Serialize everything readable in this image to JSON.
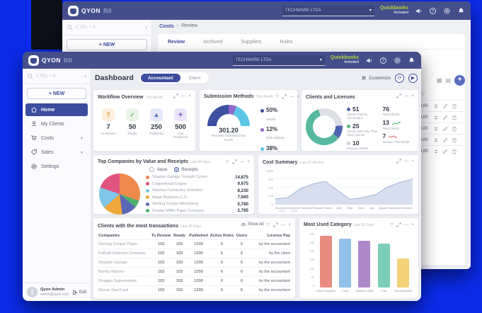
{
  "page": {
    "background": "#0b2be9"
  },
  "back_window": {
    "brand": {
      "name": "QYON",
      "suffix": "Bill"
    },
    "header": {
      "company_select": "TECHWARE LTDA",
      "quickbooks": "Quickbooks",
      "quickbooks_status": "Activated"
    },
    "sidebar": {
      "search": "CTRL + K",
      "new_button": "+ NEW",
      "home": "Home"
    },
    "breadcrumb": {
      "section": "Costs",
      "separator": "›",
      "page": "Review"
    },
    "tabs": [
      {
        "label": "Review",
        "active": true
      },
      {
        "label": "Archived"
      },
      {
        "label": "Suppliers"
      },
      {
        "label": "Rules"
      }
    ],
    "table_rows": [
      {
        "value": "3,00"
      },
      {
        "value": "3,00"
      },
      {
        "value": "3,00"
      },
      {
        "value": "3,00"
      },
      {
        "value": "3,00"
      }
    ]
  },
  "front_window": {
    "brand": {
      "name": "QYON",
      "suffix": "Bill"
    },
    "header": {
      "company_select": "TECHWARE LTDA",
      "quickbooks": "Quickbooks",
      "quickbooks_status": "Activated"
    },
    "sidebar": {
      "search": "CTRL + K",
      "new_button": "+ NEW",
      "items": [
        {
          "label": "Home"
        },
        {
          "label": "My Clients"
        },
        {
          "label": "Costs"
        },
        {
          "label": "Sales"
        },
        {
          "label": "Settings"
        }
      ],
      "user": {
        "name": "Qyon Admin",
        "email": "admin@qyon.com",
        "exit_label": "Exit"
      }
    },
    "toolbar": {
      "title": "Dashboard",
      "tab_accountant": "Accountant",
      "tab_client": "Client",
      "customize": "Customize"
    }
  },
  "widgets": {
    "workflow": {
      "title": "Workflow Overview",
      "subtitle": "This Month",
      "stats": [
        {
          "value": "7",
          "label": "To Review",
          "glyph": "?",
          "bg": "#fdeedd",
          "fg": "#e8923c"
        },
        {
          "value": "50",
          "label": "Ready",
          "glyph": "✓",
          "bg": "#e9f4e6",
          "fg": "#6cb565"
        },
        {
          "value": "250",
          "label": "Published",
          "glyph": "▲",
          "bg": "#e4e8f8",
          "fg": "#5a6cc0"
        },
        {
          "value": "500",
          "label": "Auto Published",
          "glyph": "✦",
          "bg": "#ece5f8",
          "fg": "#8a67c8"
        }
      ]
    },
    "submission": {
      "title": "Submission Methods",
      "subtitle": "This Month",
      "center_value": "301.20",
      "center_label": "Receipts Submitted this month"
    },
    "clients": {
      "title": "Clients and Licenses",
      "left": [
        {
          "value": "51",
          "label": "Clients Paid by Accountant",
          "dot": "#5063b1"
        },
        {
          "value": "25",
          "label": "Clients Who Pay Their Own License",
          "dot": "#57b97c"
        },
        {
          "value": "10",
          "label": "Inactive Clients",
          "dot": "#cdd1d9"
        }
      ],
      "right": [
        {
          "value": "76",
          "label": "Total Clients"
        },
        {
          "value": "13",
          "label": "New Clients"
        },
        {
          "value": "7",
          "label": "Inactive This Month"
        }
      ]
    },
    "top_companies": {
      "title": "Top Companies by Value and Receipts",
      "subtitle": "Last 30 days",
      "radio_value": "Value",
      "radio_receipts": "Receipts"
    },
    "cost_summary": {
      "title": "Cost Summary",
      "subtitle": "Last 12 Months"
    },
    "transactions": {
      "title": "Clients with the most transactions",
      "subtitle": "Last 30 Days",
      "show_all": "Show All",
      "columns": [
        "Companies",
        "To Review",
        "Ready",
        "Published",
        "Active Rules",
        "Users",
        "License Pay"
      ],
      "rows": [
        {
          "company": "Sterling Cooper Paper",
          "to_review": "103",
          "ready": "103",
          "published": "1200",
          "rules": "6",
          "users": "6",
          "license": "by the accountant"
        },
        {
          "company": "KaBuM Eletronic Company",
          "to_review": "103",
          "ready": "103",
          "published": "1200",
          "rules": "6",
          "users": "6",
          "license": "by the client"
        },
        {
          "company": "Shazam Garage",
          "to_review": "103",
          "ready": "103",
          "published": "1200",
          "rules": "6",
          "users": "6",
          "license": "by the accountant"
        },
        {
          "company": "Boring Watchs",
          "to_review": "103",
          "ready": "103",
          "published": "1200",
          "rules": "6",
          "users": "6",
          "license": "by the accountant"
        },
        {
          "company": "Dragger Supermarket",
          "to_review": "103",
          "ready": "103",
          "published": "1200",
          "rules": "6",
          "users": "6",
          "license": "by the accountant"
        },
        {
          "company": "Ocean Sea Food",
          "to_review": "103",
          "ready": "103",
          "published": "1200",
          "rules": "6",
          "users": "6",
          "license": "by the accountant"
        }
      ]
    },
    "category": {
      "title": "Most Used Category",
      "subtitle": "Last 30 Days"
    }
  },
  "chart_data": [
    {
      "id": "submission_gauge",
      "type": "pie",
      "variant": "half-donut",
      "title": "Submission Methods",
      "period": "This Month",
      "center_value": "301.20",
      "center_label": "Receipts Submitted this month",
      "slices": [
        {
          "label": "Mobile",
          "pct": 50,
          "pct_display": "50%",
          "color": "#3d4fa1"
        },
        {
          "label": "Web Upload",
          "pct": 12,
          "pct_display": "12%",
          "color": "#9068c8"
        },
        {
          "label": "Email",
          "pct": 38,
          "pct_display": "38%",
          "color": "#5bc6e8"
        }
      ]
    },
    {
      "id": "clients_donut",
      "type": "pie",
      "variant": "donut",
      "title": "Clients and Licenses",
      "start_deg": 128,
      "slices": [
        {
          "label": "Clients Paid by Accountant",
          "value": 51,
          "color": "#57b9a0"
        },
        {
          "label": "Clients Who Pay Their Own License",
          "value": 25,
          "color": "#dcdfe4"
        },
        {
          "label": "Inactive Clients",
          "value": 10,
          "color": "#5063b1"
        }
      ],
      "totals": {
        "total_clients": 76,
        "new_clients": 13,
        "inactive_this_month": 7
      }
    },
    {
      "id": "top_companies_pie",
      "type": "pie",
      "title": "Top Companies by Value and Receipts",
      "period": "Last 30 days",
      "mode": "Receipts",
      "render_order": [
        0,
        5,
        4,
        3,
        2,
        1
      ],
      "slices": [
        {
          "label": "Shazam Garage Triumph Cycles",
          "value": 14875,
          "display": "14,875",
          "color": "#ef8a4d"
        },
        {
          "label": "CopperHead Engine",
          "value": 9675,
          "display": "9,675",
          "color": "#e0557f"
        },
        {
          "label": "Natches Fernandez Unlimited",
          "value": 8230,
          "display": "8,230",
          "color": "#7fc6e8"
        },
        {
          "label": "Magic Business C.O.",
          "value": 7600,
          "display": "7,600",
          "color": "#f0a73c"
        },
        {
          "label": "Sterling Cooper Advertising",
          "value": 5780,
          "display": "5,780",
          "color": "#5a68b5"
        },
        {
          "label": "Dunder Mifflin Paper Company",
          "value": 2785,
          "display": "2,785",
          "color": "#4caf6e"
        }
      ]
    },
    {
      "id": "cost_summary_area",
      "type": "area",
      "title": "Cost Summary",
      "period": "Last 12 Months",
      "line_color": "#9fb2d6",
      "fill_color": "#c9d4ea",
      "ytick_labels": [
        "100k",
        "50k",
        "20k",
        "10k",
        "0"
      ],
      "months": [
        {
          "label": "November",
          "sub": "2020"
        },
        {
          "label": "December",
          "sub": "2020"
        },
        {
          "label": "January",
          "sub": ""
        },
        {
          "label": "February",
          "sub": ""
        },
        {
          "label": "March",
          "sub": ""
        },
        {
          "label": "April",
          "sub": ""
        },
        {
          "label": "May",
          "sub": ""
        },
        {
          "label": "June",
          "sub": ""
        },
        {
          "label": "July",
          "sub": ""
        },
        {
          "label": "August",
          "sub": ""
        },
        {
          "label": "September",
          "sub": ""
        },
        {
          "label": "October",
          "sub": ""
        }
      ],
      "values": [
        6400,
        8000,
        18000,
        29600,
        39000,
        16000,
        6000,
        8000,
        11200,
        20000,
        35600,
        46400
      ],
      "values_pct": [
        16,
        20,
        45,
        58,
        66,
        40,
        15,
        20,
        28,
        50,
        63,
        72
      ]
    },
    {
      "id": "category_bars",
      "type": "bar",
      "title": "Most Used Category",
      "period": "Last 30 Days",
      "categories": [
        "Office Supplies",
        "Food",
        "Utilities & Bills",
        "Fuel",
        "Transportation"
      ],
      "values": [
        28000,
        26400,
        25500,
        23700,
        15600
      ],
      "heights_pct": [
        93,
        88,
        85,
        79,
        52
      ],
      "colors": [
        "#e98a80",
        "#92c0e9",
        "#ae89c9",
        "#7ccdb9",
        "#f2d278"
      ],
      "ytick_labels": [
        "30k",
        "25k",
        "20k",
        "15k",
        "10k",
        "5k",
        "0"
      ],
      "ylim": [
        0,
        30000
      ]
    }
  ]
}
